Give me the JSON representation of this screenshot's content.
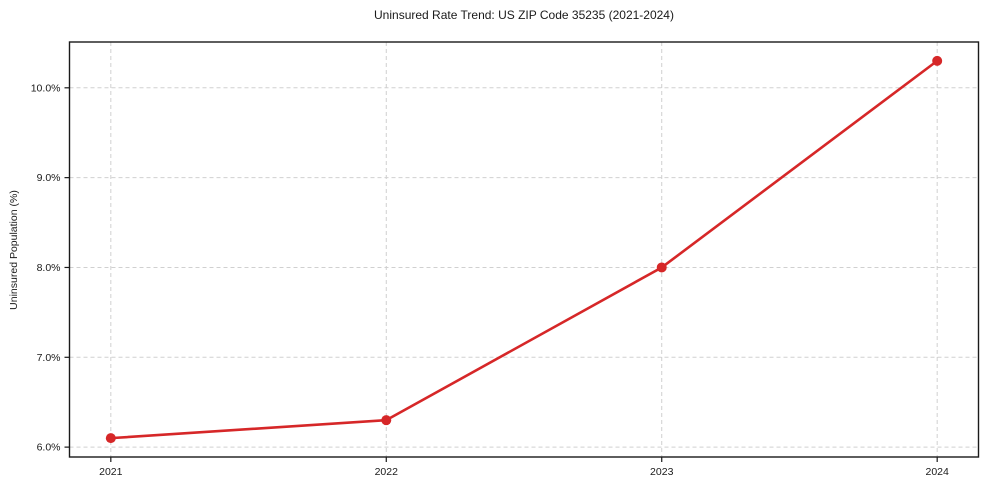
{
  "figure": {
    "background": "#ffffff"
  },
  "chart_data": {
    "type": "line",
    "title": "Uninsured Rate Trend: US ZIP Code 35235 (2021-2024)",
    "xlabel": "",
    "ylabel": "Uninsured Population (%)",
    "x": [
      2021,
      2022,
      2023,
      2024
    ],
    "x_tick_labels": [
      "2021",
      "2022",
      "2023",
      "2024"
    ],
    "series": [
      {
        "name": "uninsured-rate",
        "values": [
          6.1,
          6.3,
          8.0,
          10.3
        ],
        "color": "#d62728",
        "marker": "circle",
        "line_width": 2.6,
        "marker_radius": 5
      }
    ],
    "y_ticks": [
      6.0,
      7.0,
      8.0,
      9.0,
      10.0
    ],
    "y_tick_labels": [
      "6.0%",
      "7.0%",
      "8.0%",
      "9.0%",
      "10.0%"
    ],
    "xlim": [
      2020.85,
      2024.15
    ],
    "ylim": [
      5.89,
      10.51
    ],
    "grid": true,
    "grid_style": "dashed",
    "grid_color": "#d0d0d0",
    "axis_color": "#1a1a1a",
    "text_color": "#1a1a1a",
    "legend_position": "none"
  }
}
